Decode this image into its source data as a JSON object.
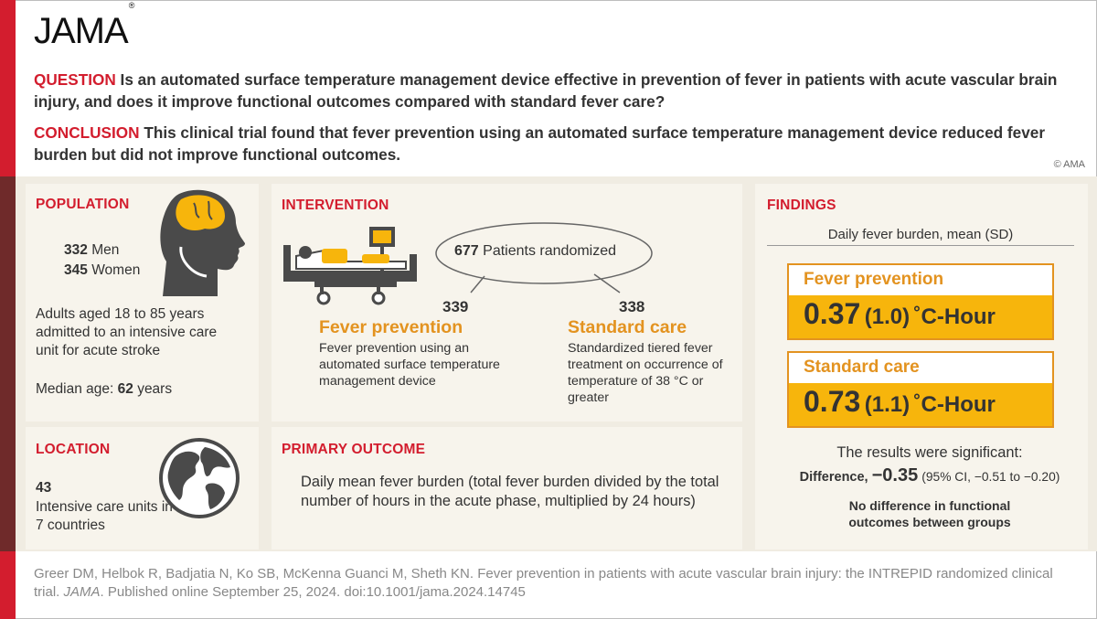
{
  "brand": {
    "logo_text": "JAMA",
    "registered_mark": "®"
  },
  "question": {
    "label": "QUESTION",
    "text": "Is an automated surface temperature management device effective in prevention of fever in patients with acute vascular brain injury, and does it improve functional outcomes compared with standard fever care?"
  },
  "conclusion": {
    "label": "CONCLUSION",
    "text": "This clinical trial found that fever prevention using an automated surface temperature management device reduced fever burden but did not improve functional outcomes."
  },
  "copyright": "© AMA",
  "population": {
    "heading": "POPULATION",
    "men_count": "332",
    "men_label": "Men",
    "women_count": "345",
    "women_label": "Women",
    "description": "Adults aged 18 to 85 years admitted to an intensive care unit for acute stroke",
    "median_age_label": "Median age:",
    "median_age_value": "62",
    "median_age_unit": "years"
  },
  "location": {
    "heading": "LOCATION",
    "count": "43",
    "description": "Intensive care units in 7 countries"
  },
  "intervention": {
    "heading": "INTERVENTION",
    "randomized_count": "677",
    "randomized_label": "Patients randomized",
    "arm1": {
      "count": "339",
      "name": "Fever prevention",
      "description": "Fever prevention using an automated surface temperature management device"
    },
    "arm2": {
      "count": "338",
      "name": "Standard care",
      "description": "Standardized tiered fever treatment on occurrence of temperature of 38 °C or greater"
    }
  },
  "primary_outcome": {
    "heading": "PRIMARY OUTCOME",
    "text": "Daily mean fever burden (total fever burden divided by the total number of hours in the acute phase, multiplied by 24 hours)"
  },
  "findings": {
    "heading": "FINDINGS",
    "subheading": "Daily fever burden, mean (SD)",
    "group1": {
      "name": "Fever prevention",
      "mean": "0.37",
      "sd": "(1.0)",
      "unit": "˚C-Hour"
    },
    "group2": {
      "name": "Standard care",
      "mean": "0.73",
      "sd": "(1.1)",
      "unit": "˚C-Hour"
    },
    "significance": "The results were significant:",
    "difference_label": "Difference,",
    "difference_value": "−0.35",
    "ci": "(95% CI, −0.51 to −0.20)",
    "note": "No difference in functional outcomes between groups"
  },
  "citation": {
    "line1": "Greer DM, Helbok R, Badjatia N, Ko SB, McKenna Guanci M, Sheth KN. Fever prevention in patients with acute vascular brain injury: the INTREPID randomized clinical trial.",
    "journal": "JAMA",
    "line2": ". Published online September 25, 2024. doi:10.1001/jama.2024.14745"
  },
  "colors": {
    "red": "#d31d2e",
    "orange": "#e39320",
    "yellow": "#f7b50c",
    "panel": "#f0ece2",
    "maroon": "#6f2a2a"
  },
  "icons": [
    "head-profile-icon",
    "globe-icon",
    "hospital-bed-icon",
    "monitor-icon"
  ]
}
